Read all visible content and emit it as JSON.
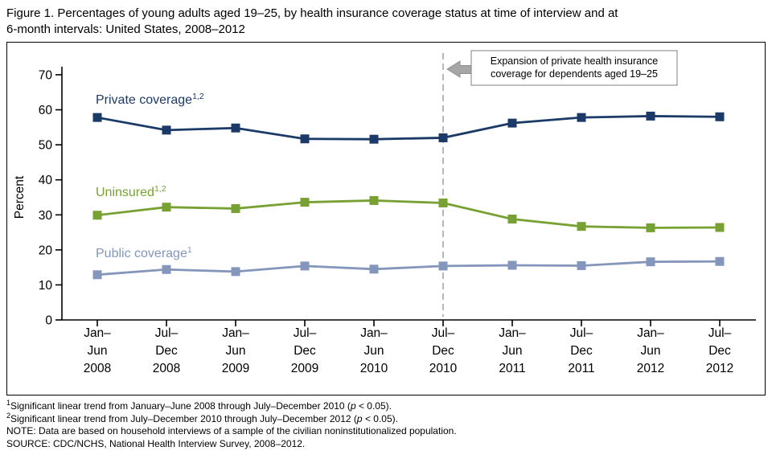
{
  "title_lines": [
    "Figure 1. Percentages of young adults aged 19–25, by health insurance coverage status at time of interview and at",
    "6-month intervals: United States, 2008–2012"
  ],
  "chart_data": {
    "type": "line",
    "title": "Figure 1. Percentages of young adults aged 19–25, by health insurance coverage status at time of interview and at 6-month intervals: United States, 2008–2012",
    "ylabel": "Percent",
    "ylim": [
      0,
      70
    ],
    "yticks": [
      0,
      10,
      20,
      30,
      40,
      50,
      60,
      70
    ],
    "grid": false,
    "legend": "inline-series-labels",
    "categories": [
      "Jan–Jun 2008",
      "Jul–Dec 2008",
      "Jan–Jun 2009",
      "Jul–Dec 2009",
      "Jan–Jun 2010",
      "Jul–Dec 2010",
      "Jan–Jun 2011",
      "Jul–Dec 2011",
      "Jan–Jun 2012",
      "Jul–Dec 2012"
    ],
    "x_tick_lines": [
      [
        "Jan–",
        "Jun",
        "2008"
      ],
      [
        "Jul–",
        "Dec",
        "2008"
      ],
      [
        "Jan–",
        "Jun",
        "2009"
      ],
      [
        "Jul–",
        "Dec",
        "2009"
      ],
      [
        "Jan–",
        "Jun",
        "2010"
      ],
      [
        "Jul–",
        "Dec",
        "2010"
      ],
      [
        "Jan–",
        "Jun",
        "2011"
      ],
      [
        "Jul–",
        "Dec",
        "2011"
      ],
      [
        "Jan–",
        "Jun",
        "2012"
      ],
      [
        "Jul–",
        "Dec",
        "2012"
      ]
    ],
    "series": [
      {
        "id": "private",
        "name": "Private coverage",
        "sup": "1,2",
        "color": "#1b3a68",
        "values": [
          57.8,
          54.2,
          54.8,
          51.7,
          51.6,
          52.0,
          56.2,
          57.8,
          58.2,
          58.0
        ]
      },
      {
        "id": "uninsured",
        "name": "Uninsured",
        "sup": "1,2",
        "color": "#77a133",
        "values": [
          29.9,
          32.2,
          31.8,
          33.6,
          34.1,
          33.4,
          28.8,
          26.7,
          26.3,
          26.4
        ]
      },
      {
        "id": "public",
        "name": "Public coverage",
        "sup": "1",
        "color": "#8496bb",
        "values": [
          12.9,
          14.4,
          13.8,
          15.4,
          14.5,
          15.4,
          15.6,
          15.5,
          16.6,
          16.7
        ]
      }
    ],
    "annotation": {
      "lines": [
        "Expansion of private health insurance",
        "coverage for dependents aged 19–25"
      ],
      "x_index": 5
    },
    "colors": {
      "axis": "#000000",
      "reference_line": "#ababab",
      "arrow": "#a6a6a6",
      "arrow_outline": "#8f8f8f",
      "annotation_border": "#808080",
      "annotation_fill": "#ffffff"
    }
  },
  "footnotes": [
    {
      "sup": "1",
      "parts": [
        {
          "t": "Significant linear trend from January–June 2008 through July–December 2010 ("
        },
        {
          "t": "p",
          "italic": true
        },
        {
          "t": " < 0.05)."
        }
      ]
    },
    {
      "sup": "2",
      "parts": [
        {
          "t": "Significant linear trend from July–December 2010 through July–December 2012 ("
        },
        {
          "t": "p",
          "italic": true
        },
        {
          "t": " < 0.05)."
        }
      ]
    },
    {
      "sup": "",
      "parts": [
        {
          "t": "NOTE: Data are based on household interviews of a sample of the civilian noninstitutionalized population."
        }
      ]
    },
    {
      "sup": "",
      "parts": [
        {
          "t": "SOURCE: CDC/NCHS, National Health Interview Survey, 2008–2012."
        }
      ]
    }
  ]
}
